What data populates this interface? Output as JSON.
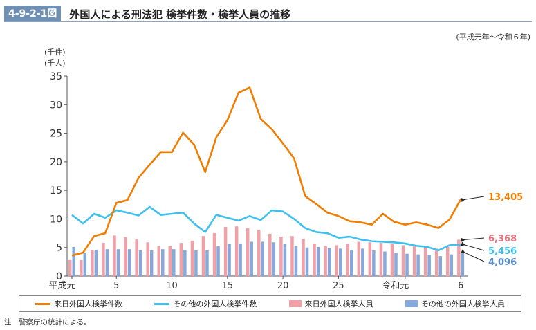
{
  "header": {
    "figure_number": "4-9-2-1図",
    "title": "外国人による刑法犯 検挙件数・検挙人員の推移",
    "period": "(平成元年～令和６年)"
  },
  "units": [
    "(千件)",
    "(千人)"
  ],
  "note": "注　警察庁の統計による。",
  "chart_data": {
    "type": "bar+line",
    "title": "外国人による刑法犯 検挙件数・検挙人員の推移",
    "xlabel": "",
    "ylabel": "(千件)(千人)",
    "ylim": [
      0,
      35
    ],
    "yticks": [
      "0",
      "5",
      "10",
      "15",
      "20",
      "25",
      "30",
      "35"
    ],
    "x": [
      "平成元",
      "2",
      "3",
      "4",
      "5",
      "6",
      "7",
      "8",
      "9",
      "10",
      "11",
      "12",
      "13",
      "14",
      "15",
      "16",
      "17",
      "18",
      "19",
      "20",
      "21",
      "22",
      "23",
      "24",
      "25",
      "26",
      "27",
      "28",
      "29",
      "30",
      "令和元",
      "2",
      "3",
      "4",
      "5",
      "6"
    ],
    "xtick_labels": [
      {
        "index": 0,
        "label": "平成元"
      },
      {
        "index": 4,
        "label": "5"
      },
      {
        "index": 9,
        "label": "10"
      },
      {
        "index": 14,
        "label": "15"
      },
      {
        "index": 19,
        "label": "20"
      },
      {
        "index": 24,
        "label": "25"
      },
      {
        "index": 30,
        "label": "令和元"
      },
      {
        "index": 35,
        "label": "6"
      }
    ],
    "grid": false,
    "legend_position": "bottom",
    "series": [
      {
        "name": "来日外国人検挙件数",
        "type": "line",
        "color": "#f07d00",
        "values": [
          3.6,
          4.1,
          7.0,
          7.5,
          12.8,
          13.3,
          17.2,
          19.5,
          21.7,
          21.7,
          25.1,
          23.0,
          18.2,
          24.3,
          27.3,
          32.1,
          33.0,
          27.5,
          25.7,
          23.2,
          20.6,
          14.0,
          12.6,
          11.1,
          10.5,
          9.6,
          9.4,
          9.0,
          10.9,
          9.5,
          9.0,
          9.4,
          9.0,
          8.4,
          9.9,
          13.405
        ],
        "end_label": "13,405"
      },
      {
        "name": "その他の外国人検挙件数",
        "type": "line",
        "color": "#3ec0ef",
        "values": [
          10.7,
          9.2,
          10.9,
          10.2,
          11.5,
          11.1,
          10.6,
          12.1,
          10.7,
          10.9,
          11.1,
          9.2,
          7.7,
          10.7,
          10.2,
          9.7,
          10.5,
          9.8,
          11.5,
          11.3,
          10.0,
          8.4,
          7.7,
          7.5,
          6.7,
          6.9,
          6.4,
          6.1,
          6.0,
          5.9,
          5.7,
          5.3,
          5.1,
          4.5,
          5.4,
          5.456
        ],
        "end_label": "5,456"
      },
      {
        "name": "来日外国人検挙人員",
        "type": "bar",
        "color": "#f1a0a8",
        "values": [
          2.8,
          2.8,
          4.6,
          5.8,
          7.1,
          6.8,
          6.4,
          5.9,
          5.2,
          5.2,
          5.8,
          6.2,
          7.0,
          7.5,
          8.6,
          8.7,
          8.4,
          8.0,
          7.4,
          6.9,
          7.0,
          6.5,
          5.7,
          5.2,
          5.4,
          5.6,
          6.0,
          5.9,
          5.8,
          5.6,
          5.4,
          5.2,
          5.3,
          4.8,
          5.1,
          6.368
        ],
        "end_label": "6,368"
      },
      {
        "name": "その他の外国人検挙人員",
        "type": "bar",
        "color": "#86a9dc",
        "values": [
          5.1,
          4.0,
          4.6,
          4.7,
          4.7,
          4.7,
          4.5,
          4.5,
          4.7,
          4.7,
          4.6,
          4.5,
          4.5,
          5.2,
          5.6,
          5.7,
          6.0,
          6.0,
          5.9,
          5.6,
          5.2,
          5.0,
          5.1,
          4.9,
          4.8,
          4.6,
          4.8,
          4.5,
          4.3,
          4.1,
          3.9,
          3.8,
          3.7,
          3.5,
          3.8,
          4.096
        ],
        "end_label": "4,096"
      }
    ],
    "label_colors": {
      "orange": "#f07d00",
      "pink": "#e9717d",
      "blue": "#3ec0ef",
      "darkblue": "#5b8fd0"
    }
  }
}
